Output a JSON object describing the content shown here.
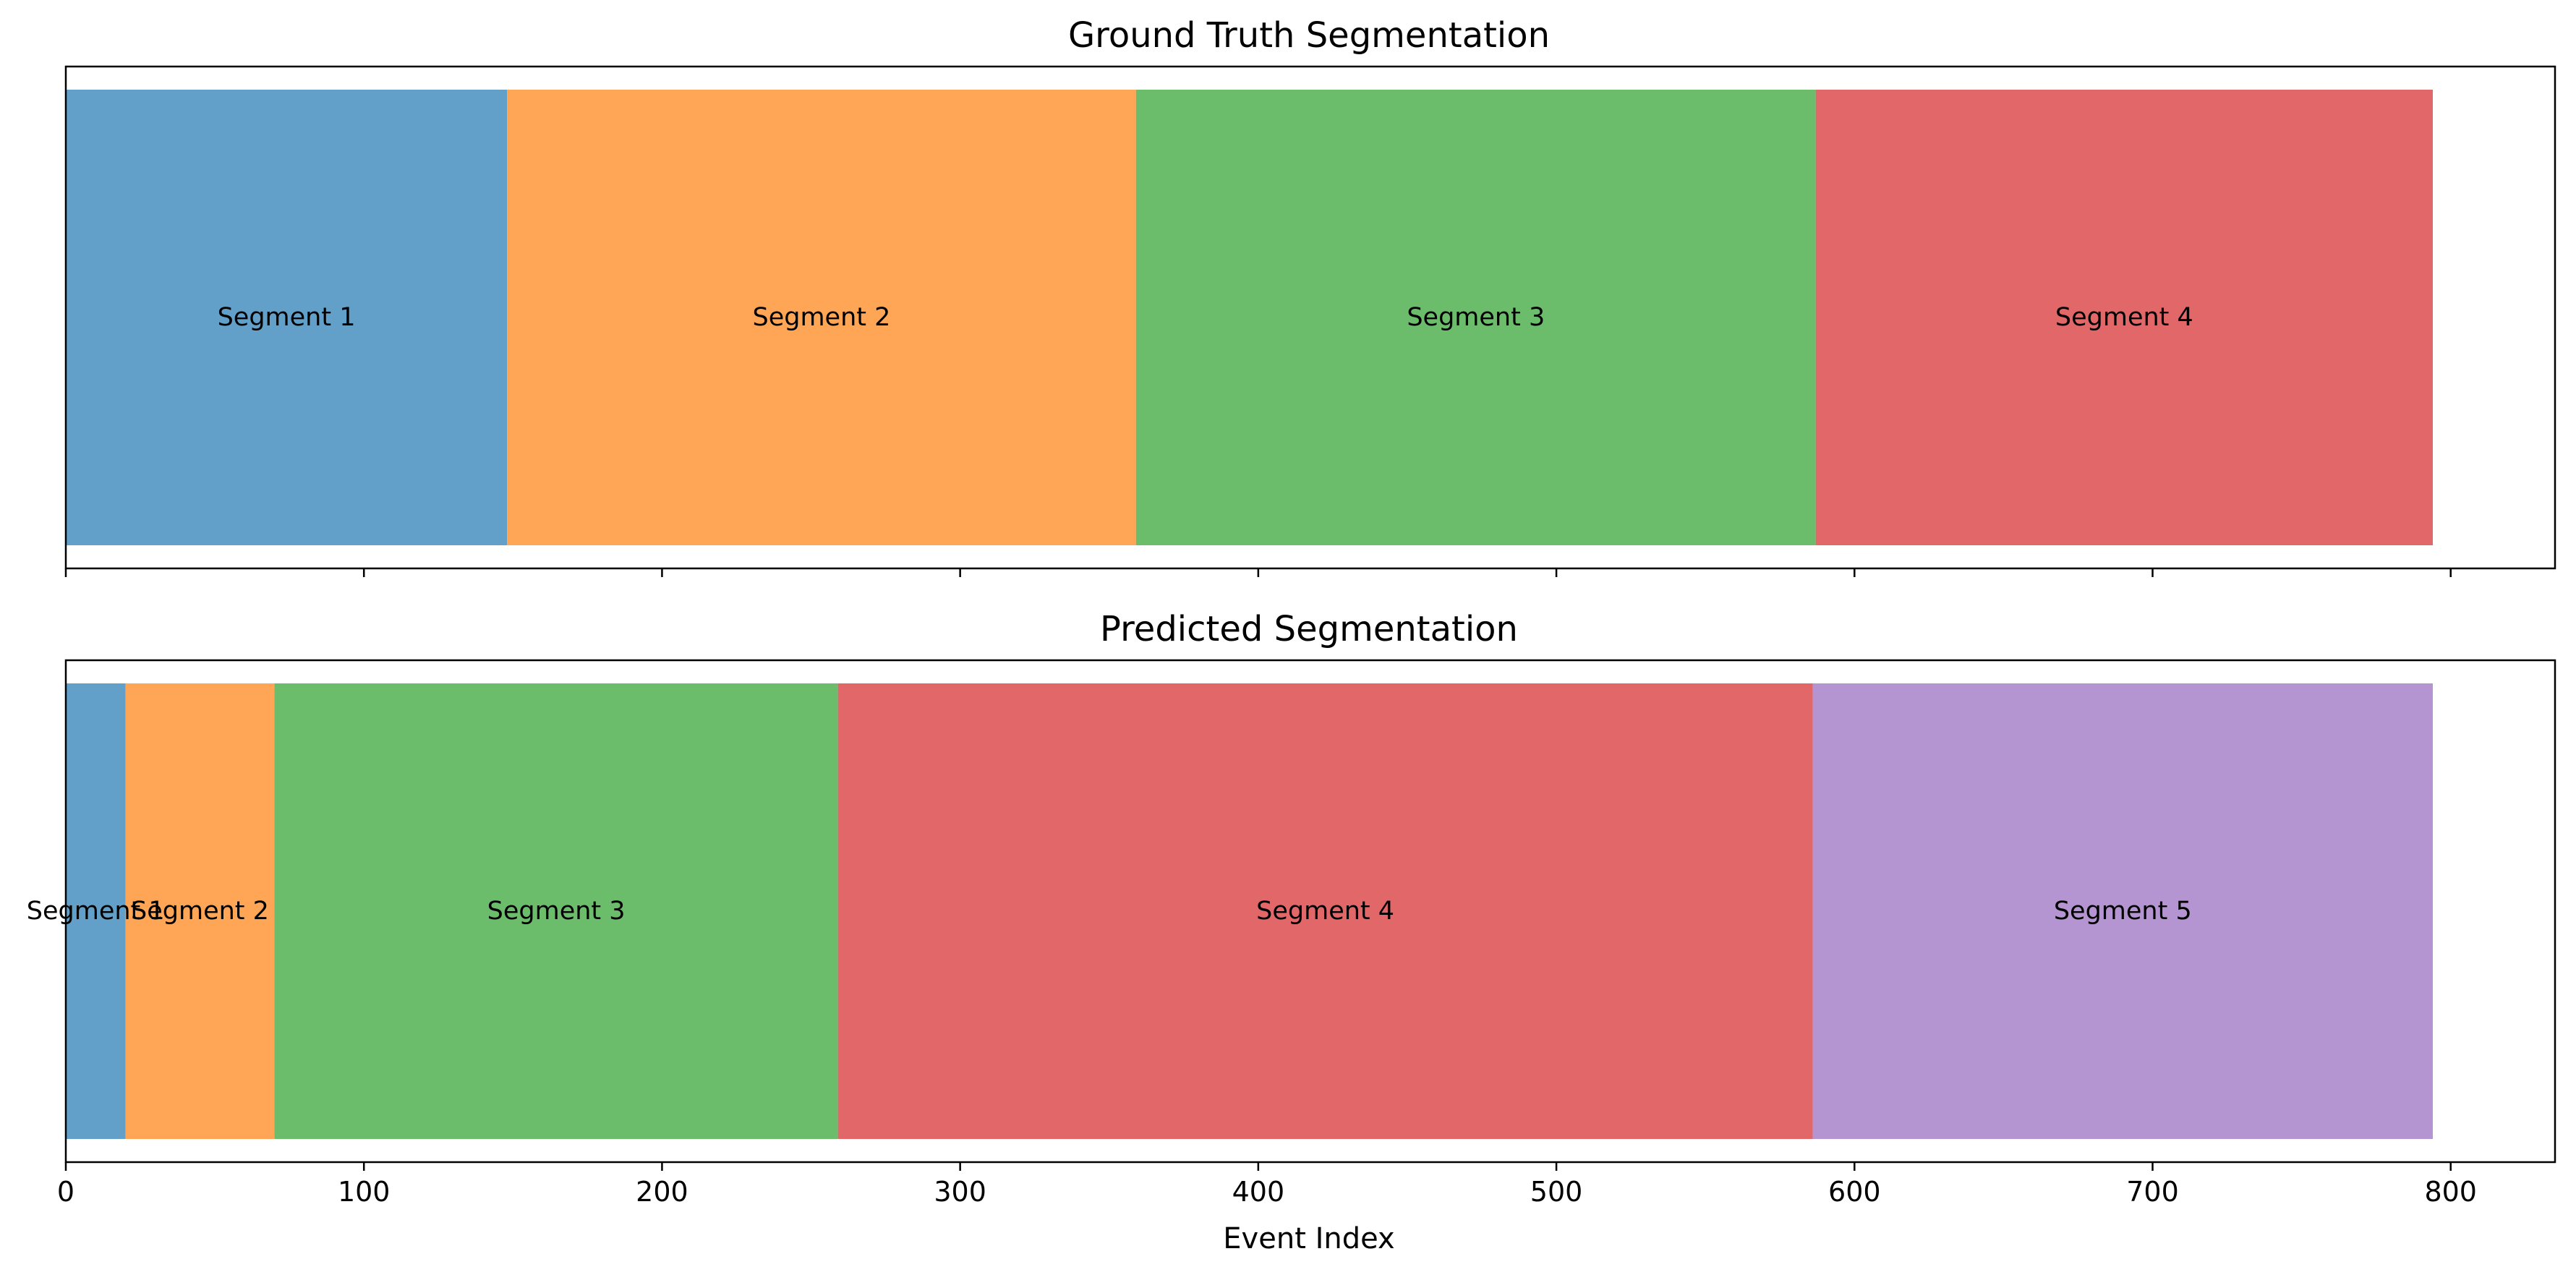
{
  "chart_data": [
    {
      "type": "bar",
      "orientation": "horizontal-stacked",
      "title": "Ground Truth Segmentation",
      "xlim": [
        0,
        835
      ],
      "segments": [
        {
          "label": "Segment 1",
          "start": 0,
          "end": 148,
          "color": "#1f77b4"
        },
        {
          "label": "Segment 2",
          "start": 148,
          "end": 359,
          "color": "#ff7f0e"
        },
        {
          "label": "Segment 3",
          "start": 359,
          "end": 587,
          "color": "#2ca02c"
        },
        {
          "label": "Segment 4",
          "start": 587,
          "end": 794,
          "color": "#d62728"
        }
      ],
      "show_tick_labels": false
    },
    {
      "type": "bar",
      "orientation": "horizontal-stacked",
      "title": "Predicted Segmentation",
      "xlim": [
        0,
        835
      ],
      "xlabel": "Event Index",
      "xticks": [
        "0",
        "100",
        "200",
        "300",
        "400",
        "500",
        "600",
        "700",
        "800"
      ],
      "segments": [
        {
          "label": "Segment 1",
          "start": 0,
          "end": 20,
          "color": "#1f77b4"
        },
        {
          "label": "Segment 2",
          "start": 20,
          "end": 70,
          "color": "#ff7f0e"
        },
        {
          "label": "Segment 3",
          "start": 70,
          "end": 259,
          "color": "#2ca02c"
        },
        {
          "label": "Segment 4",
          "start": 259,
          "end": 586,
          "color": "#d62728"
        },
        {
          "label": "Segment 5",
          "start": 586,
          "end": 794,
          "color": "#9467bd"
        }
      ],
      "show_tick_labels": true
    }
  ],
  "bar_alpha": 0.7
}
